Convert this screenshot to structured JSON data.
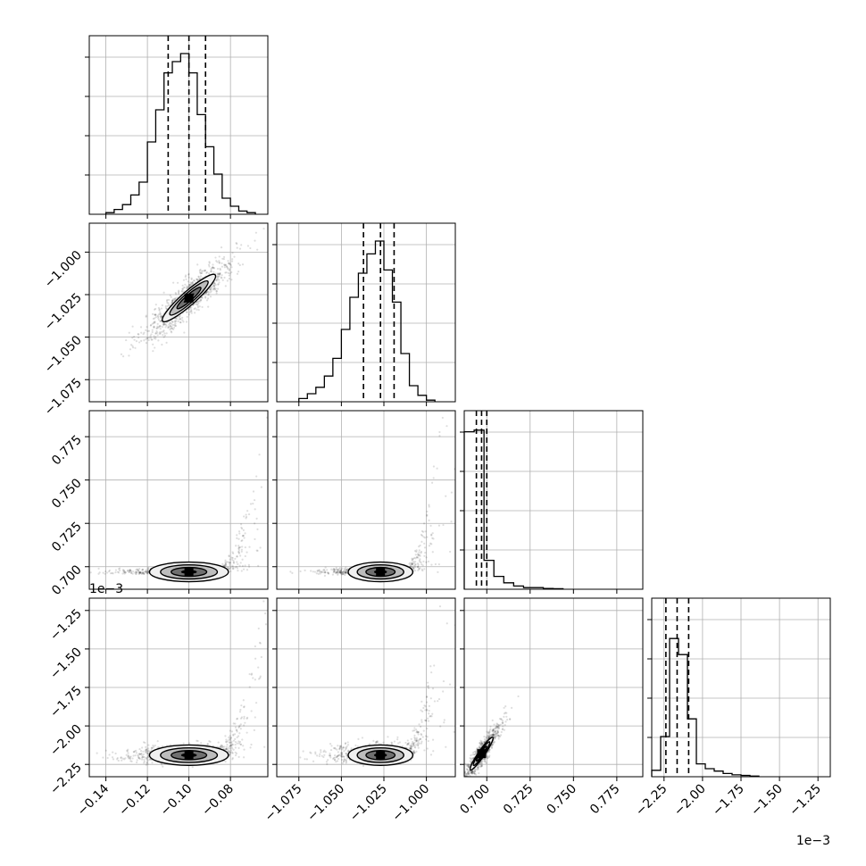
{
  "chart_data": {
    "type": "corner",
    "parameters": [
      {
        "xlim": [
          -0.148,
          -0.062
        ],
        "ylim": [
          -1.088,
          -0.983
        ],
        "ticks": [
          -0.14,
          -0.12,
          -0.1,
          -0.08
        ],
        "tick_labels": [
          "−0.14",
          "−0.12",
          "−0.10",
          "−0.08"
        ],
        "scale_note": ""
      },
      {
        "xlim": [
          -1.088,
          -0.983
        ],
        "ylim": [
          -1.088,
          -0.983
        ],
        "ticks": [
          -1.075,
          -1.05,
          -1.025,
          -1.0
        ],
        "tick_labels": [
          "−1.075",
          "−1.050",
          "−1.025",
          "−1.000"
        ],
        "scale_note": ""
      },
      {
        "xlim": [
          0.687,
          0.79
        ],
        "ylim": [
          0.687,
          0.79
        ],
        "ticks": [
          0.7,
          0.725,
          0.75,
          0.775
        ],
        "tick_labels": [
          "0.700",
          "0.725",
          "0.750",
          "0.775"
        ],
        "scale_note": "1e−3"
      },
      {
        "xlim": [
          -2.33,
          -1.17
        ],
        "ylim": [
          -2.33,
          -1.17
        ],
        "ticks": [
          -2.25,
          -2.0,
          -1.75,
          -1.5,
          -1.25
        ],
        "tick_labels": [
          "−2.25",
          "−2.00",
          "−1.75",
          "−1.50",
          "−1.25"
        ],
        "scale_note": "1e−3"
      }
    ],
    "histograms": [
      {
        "param": 0,
        "edges_start": -0.14,
        "bin_width": 0.004,
        "counts": [
          0.01,
          0.03,
          0.06,
          0.12,
          0.2,
          0.45,
          0.65,
          0.88,
          0.95,
          1.0,
          0.88,
          0.62,
          0.42,
          0.25,
          0.1,
          0.05,
          0.02,
          0.01
        ],
        "quantiles": [
          -0.11,
          -0.1,
          -0.092
        ]
      },
      {
        "param": 1,
        "edges_start": -1.075,
        "bin_width": 0.005,
        "counts": [
          0.02,
          0.05,
          0.09,
          0.16,
          0.27,
          0.45,
          0.65,
          0.8,
          0.92,
          1.0,
          0.82,
          0.62,
          0.3,
          0.1,
          0.04,
          0.01
        ],
        "quantiles": [
          -1.037,
          -1.027,
          -1.019
        ]
      },
      {
        "param": 2,
        "edges_start": 0.687,
        "bin_width": 0.0057,
        "counts": [
          0.98,
          0.99,
          0.18,
          0.08,
          0.04,
          0.02,
          0.01,
          0.01,
          0.005,
          0.003
        ],
        "quantiles": [
          0.694,
          0.697,
          0.7
        ]
      },
      {
        "param": 3,
        "edges_start": -2.33,
        "bin_width": 0.058,
        "counts": [
          0.04,
          0.25,
          0.86,
          0.76,
          0.36,
          0.08,
          0.05,
          0.035,
          0.02,
          0.012,
          0.008,
          0.004
        ],
        "quantiles": [
          -2.238,
          -2.165,
          -2.09
        ]
      }
    ],
    "pairs": [
      {
        "x_param": 0,
        "y_param": 1,
        "shape": "linear",
        "center": [
          -0.1,
          -1.027
        ],
        "spread": [
          0.008,
          0.009
        ],
        "rho": 0.9
      },
      {
        "x_param": 0,
        "y_param": 2,
        "shape": "floor_with_upturn",
        "center": [
          -0.1,
          0.697
        ],
        "spread": [
          0.01,
          0.002
        ],
        "rho": 0.0
      },
      {
        "x_param": 1,
        "y_param": 2,
        "shape": "floor_with_upturn",
        "center": [
          -1.027,
          0.697
        ],
        "spread": [
          0.01,
          0.002
        ],
        "rho": 0.0
      },
      {
        "x_param": 0,
        "y_param": 3,
        "shape": "floor_with_upturn",
        "center": [
          -0.1,
          -2.19
        ],
        "spread": [
          0.01,
          0.06
        ],
        "rho": 0.0
      },
      {
        "x_param": 1,
        "y_param": 3,
        "shape": "floor_with_upturn",
        "center": [
          -1.027,
          -2.19
        ],
        "spread": [
          0.01,
          0.06
        ],
        "rho": 0.0
      },
      {
        "x_param": 2,
        "y_param": 3,
        "shape": "linear",
        "center": [
          0.697,
          -2.18
        ],
        "spread": [
          0.004,
          0.07
        ],
        "rho": 0.93
      }
    ],
    "grid": true,
    "colors": {
      "line": "#000000",
      "grid": "#b0b0b0",
      "scatter": "#000000",
      "density": [
        "#f0f0f0",
        "#bdbdbd",
        "#707070",
        "#000000"
      ]
    }
  }
}
